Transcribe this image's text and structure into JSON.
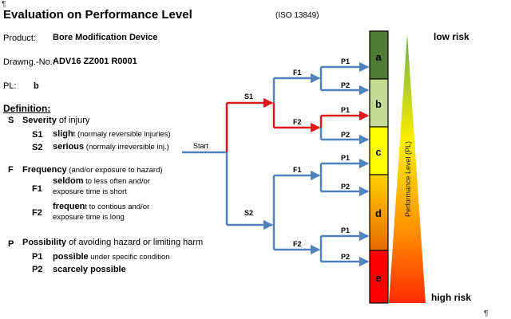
{
  "pilcrow_top": "¶",
  "pilcrow_bottom": "¶",
  "title": "Evaluation on Performance Level",
  "iso": "(ISO 13849)",
  "product": {
    "label": "Product:",
    "value": "Bore Modification Device"
  },
  "drawing": {
    "label": "Drawng.-No.:",
    "value": "ADV16 ZZ001 R0001"
  },
  "pl": {
    "label": "PL:",
    "value": "b"
  },
  "definition": {
    "heading": "Definition:",
    "severity": {
      "symbol": "S",
      "title_bold": "Severity",
      "title_rest": " of injury",
      "items": [
        {
          "code": "S1",
          "bold": "sligh",
          "rest": "t (normaly reversible injuries)"
        },
        {
          "code": "S2",
          "bold": "serious",
          "rest": " (normaly irreversible inj.)"
        }
      ]
    },
    "frequency": {
      "symbol": "F",
      "title_bold": "Frequency",
      "title_rest": " (and/or exposure to hazard)",
      "items": [
        {
          "code": "F1",
          "bold": "seldom",
          "rest": " to less often and/or",
          "line2": "exposure time is short"
        },
        {
          "code": "F2",
          "bold": "frequen",
          "rest": "t to contious and/or",
          "line2": "exposure time is long"
        }
      ]
    },
    "possibility": {
      "symbol": "P",
      "title_bold": "Possibility",
      "title_rest": " of avoiding hazard or limiting harm",
      "items": [
        {
          "code": "P1",
          "bold": "possible",
          "rest": " under specific condition"
        },
        {
          "code": "P2",
          "bold": "scarcely possible",
          "rest": ""
        }
      ]
    }
  },
  "tree": {
    "start": "Start",
    "s1": "S1",
    "s2": "S2",
    "f1_upper": "F1",
    "f2_upper": "F2",
    "f1_lower": "F1",
    "f2_lower": "F2",
    "p_labels": [
      "P1",
      "P2",
      "P1",
      "P2",
      "P1",
      "P2",
      "P1",
      "P2"
    ],
    "highlight_path": [
      "S1",
      "F2",
      "P1"
    ],
    "colors": {
      "normal": "#4f81bd",
      "highlight": "#e01818"
    }
  },
  "levels": [
    {
      "label": "a",
      "color": "#4e7a33"
    },
    {
      "label": "b",
      "color": "#c4dc96"
    },
    {
      "label": "c",
      "color": "#ffff00"
    },
    {
      "label": "d",
      "color": "#f0b400"
    },
    {
      "label": "e",
      "color": "#ff0000"
    }
  ],
  "triangle": {
    "label": "Performance Level (PL)",
    "top_color": "#6ab04c",
    "bottom_color": "#ff2a00"
  },
  "risk": {
    "low": "low risk",
    "high": "high risk"
  }
}
